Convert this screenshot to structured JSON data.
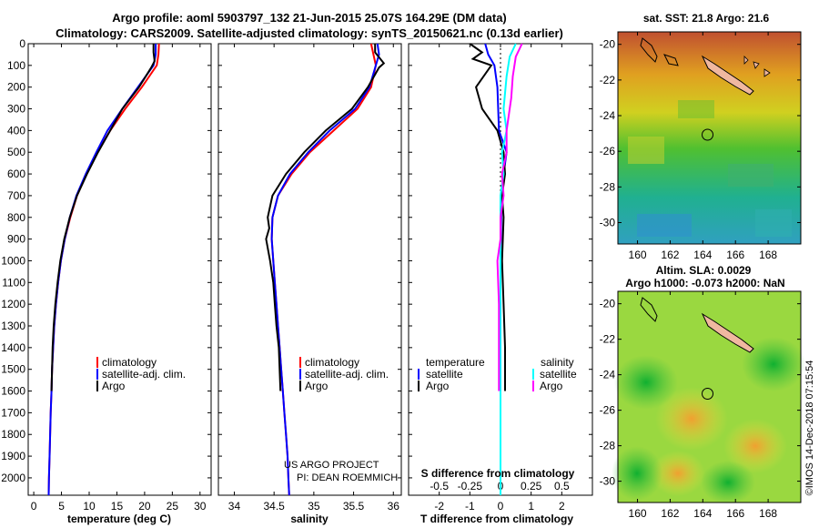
{
  "header": {
    "line1": "Argo profile: aoml 5903797_132 21-Jun-2015 25.07S 164.29E (DM data)",
    "line2": "Climatology: CARS2009. Satellite-adjusted climatology: synTS_20150621.nc (0.13d earlier)"
  },
  "maps": {
    "sst_title": "sat. SST: 21.8 Argo: 21.6",
    "sla_title1": "Altim. SLA: 0.0029",
    "sla_title2": "Argo h1000: -0.073 h2000: NaN",
    "lat_ticks": [
      -20,
      -22,
      -24,
      -26,
      -28,
      -30
    ],
    "lon_ticks": [
      160,
      162,
      164,
      166,
      168
    ],
    "lon_range": [
      158.8,
      170
    ],
    "lat_range": [
      -19.3,
      -31.2
    ],
    "argo_position": {
      "lon": 164.29,
      "lat": -25.07
    }
  },
  "credits": {
    "project": "US ARGO PROJECT",
    "pi": "PI: DEAN ROEMMICH",
    "stamp": "©IMOS 14-Dec-2018 07:15:54"
  },
  "colors": {
    "climatology": "#ff0000",
    "satellite": "#0000ff",
    "argo": "#000000",
    "sal_satellite": "#00ffff",
    "sal_argo": "#ff00ff"
  },
  "chart_data": [
    {
      "type": "line",
      "xlabel": "temperature (deg C)",
      "ylabel": "",
      "xlim": [
        -1,
        32
      ],
      "ylim": [
        2080,
        0
      ],
      "xticks": [
        0,
        5,
        10,
        15,
        20,
        25,
        30
      ],
      "yticks": [
        0,
        100,
        200,
        300,
        400,
        500,
        600,
        700,
        800,
        900,
        1000,
        1100,
        1200,
        1300,
        1400,
        1500,
        1600,
        1700,
        1800,
        1900,
        2000
      ],
      "legend": [
        "climatology",
        "satellite-adj. clim.",
        "Argo"
      ],
      "series": [
        {
          "name": "climatology",
          "color": "#ff0000",
          "points": [
            [
              22.6,
              0
            ],
            [
              22.5,
              50
            ],
            [
              22.2,
              100
            ],
            [
              19.5,
              200
            ],
            [
              16.5,
              300
            ],
            [
              13.8,
              400
            ],
            [
              11.5,
              500
            ],
            [
              9.5,
              600
            ],
            [
              7.8,
              700
            ],
            [
              6.6,
              800
            ],
            [
              5.6,
              900
            ],
            [
              4.9,
              1000
            ],
            [
              4.4,
              1100
            ],
            [
              4.0,
              1200
            ],
            [
              3.7,
              1300
            ],
            [
              3.5,
              1400
            ],
            [
              3.3,
              1500
            ],
            [
              3.2,
              1600
            ],
            [
              3.05,
              1700
            ],
            [
              2.95,
              1800
            ],
            [
              2.85,
              1900
            ],
            [
              2.75,
              2000
            ],
            [
              2.7,
              2080
            ]
          ]
        },
        {
          "name": "satellite-adj. clim.",
          "color": "#0000ff",
          "points": [
            [
              22.0,
              0
            ],
            [
              22.0,
              50
            ],
            [
              21.6,
              100
            ],
            [
              18.8,
              200
            ],
            [
              16.0,
              300
            ],
            [
              13.3,
              400
            ],
            [
              11.3,
              500
            ],
            [
              9.4,
              600
            ],
            [
              7.7,
              700
            ],
            [
              6.5,
              800
            ],
            [
              5.6,
              900
            ],
            [
              4.9,
              1000
            ],
            [
              4.4,
              1100
            ],
            [
              4.0,
              1200
            ],
            [
              3.7,
              1300
            ],
            [
              3.5,
              1400
            ],
            [
              3.3,
              1500
            ],
            [
              3.2,
              1600
            ],
            [
              3.05,
              1700
            ],
            [
              2.95,
              1800
            ],
            [
              2.85,
              1900
            ],
            [
              2.75,
              2000
            ],
            [
              2.7,
              2080
            ]
          ]
        },
        {
          "name": "Argo",
          "color": "#000000",
          "points": [
            [
              21.6,
              0
            ],
            [
              21.6,
              40
            ],
            [
              21.8,
              80
            ],
            [
              21.2,
              110
            ],
            [
              19.0,
              200
            ],
            [
              16.0,
              300
            ],
            [
              13.8,
              400
            ],
            [
              11.6,
              500
            ],
            [
              9.6,
              600
            ],
            [
              7.8,
              700
            ],
            [
              6.5,
              800
            ],
            [
              5.5,
              900
            ],
            [
              4.8,
              1000
            ],
            [
              4.3,
              1100
            ],
            [
              3.9,
              1200
            ],
            [
              3.6,
              1300
            ],
            [
              3.4,
              1400
            ],
            [
              3.3,
              1500
            ],
            [
              3.2,
              1600
            ]
          ]
        }
      ]
    },
    {
      "type": "line",
      "xlabel": "salinity",
      "ylabel": "",
      "xlim": [
        33.8,
        36.1
      ],
      "ylim": [
        2080,
        0
      ],
      "xticks": [
        34,
        34.5,
        35,
        35.5,
        36
      ],
      "legend": [
        "climatology",
        "satellite-adj. clim.",
        "Argo"
      ],
      "series": [
        {
          "name": "climatology",
          "color": "#ff0000",
          "points": [
            [
              35.72,
              0
            ],
            [
              35.75,
              50
            ],
            [
              35.78,
              100
            ],
            [
              35.72,
              200
            ],
            [
              35.55,
              300
            ],
            [
              35.25,
              400
            ],
            [
              34.95,
              500
            ],
            [
              34.72,
              600
            ],
            [
              34.55,
              700
            ],
            [
              34.48,
              800
            ],
            [
              34.47,
              900
            ],
            [
              34.49,
              1000
            ],
            [
              34.51,
              1100
            ],
            [
              34.53,
              1200
            ],
            [
              34.55,
              1300
            ],
            [
              34.57,
              1400
            ],
            [
              34.59,
              1500
            ],
            [
              34.61,
              1600
            ],
            [
              34.63,
              1700
            ],
            [
              34.65,
              1800
            ],
            [
              34.67,
              1900
            ],
            [
              34.68,
              2000
            ],
            [
              34.69,
              2080
            ]
          ]
        },
        {
          "name": "satellite-adj. clim.",
          "color": "#0000ff",
          "points": [
            [
              35.8,
              0
            ],
            [
              35.82,
              50
            ],
            [
              35.78,
              100
            ],
            [
              35.7,
              200
            ],
            [
              35.52,
              300
            ],
            [
              35.2,
              400
            ],
            [
              34.93,
              500
            ],
            [
              34.7,
              600
            ],
            [
              34.55,
              700
            ],
            [
              34.48,
              800
            ],
            [
              34.47,
              900
            ],
            [
              34.49,
              1000
            ],
            [
              34.51,
              1100
            ],
            [
              34.53,
              1200
            ],
            [
              34.55,
              1300
            ],
            [
              34.57,
              1400
            ],
            [
              34.59,
              1500
            ],
            [
              34.61,
              1600
            ],
            [
              34.63,
              1700
            ],
            [
              34.65,
              1800
            ],
            [
              34.67,
              1900
            ],
            [
              34.68,
              2000
            ],
            [
              34.69,
              2080
            ]
          ]
        },
        {
          "name": "Argo",
          "color": "#000000",
          "points": [
            [
              35.77,
              0
            ],
            [
              35.77,
              40
            ],
            [
              35.88,
              90
            ],
            [
              35.82,
              110
            ],
            [
              35.68,
              200
            ],
            [
              35.48,
              300
            ],
            [
              35.15,
              400
            ],
            [
              34.88,
              500
            ],
            [
              34.65,
              600
            ],
            [
              34.48,
              700
            ],
            [
              34.42,
              800
            ],
            [
              34.44,
              850
            ],
            [
              34.4,
              900
            ],
            [
              34.45,
              1000
            ],
            [
              34.49,
              1100
            ],
            [
              34.51,
              1200
            ],
            [
              34.53,
              1300
            ],
            [
              34.56,
              1400
            ],
            [
              34.57,
              1500
            ],
            [
              34.58,
              1600
            ]
          ]
        }
      ]
    },
    {
      "type": "line",
      "xlabel": "T difference from climatology",
      "xlabel_top": "S difference from climatology",
      "xlim": [
        -3,
        3
      ],
      "ylim": [
        2080,
        0
      ],
      "xticks": [
        -2,
        -1,
        0,
        1,
        2
      ],
      "xticks_top_labels": [
        "-0.5",
        "-0.25",
        "0",
        "0.25",
        "0.5"
      ],
      "legend_temperature": {
        "title": "temperature",
        "items": [
          "satellite",
          "Argo"
        ]
      },
      "legend_salinity": {
        "title": "salinity",
        "items": [
          "satellite",
          "Argo"
        ]
      },
      "series": [
        {
          "name": "satellite",
          "color": "#0000ff",
          "points": [
            [
              -0.5,
              0
            ],
            [
              -0.4,
              50
            ],
            [
              -0.2,
              100
            ],
            [
              -0.1,
              200
            ],
            [
              -0.05,
              400
            ],
            [
              0.2,
              500
            ],
            [
              0.1,
              600
            ],
            [
              0.05,
              700
            ],
            [
              0.02,
              800
            ],
            [
              0,
              1000
            ],
            [
              0,
              1500
            ],
            [
              0,
              2000
            ],
            [
              0,
              2080
            ]
          ]
        },
        {
          "name": "Argo",
          "color": "#000000",
          "points": [
            [
              -1.0,
              0
            ],
            [
              -0.6,
              40
            ],
            [
              -0.9,
              70
            ],
            [
              -0.3,
              100
            ],
            [
              -0.8,
              200
            ],
            [
              -0.6,
              300
            ],
            [
              -0.1,
              400
            ],
            [
              0.1,
              500
            ],
            [
              0.15,
              600
            ],
            [
              0.05,
              700
            ],
            [
              0.1,
              800
            ],
            [
              0.05,
              1000
            ],
            [
              0.1,
              1200
            ],
            [
              0.15,
              1400
            ],
            [
              0.15,
              1600
            ]
          ]
        },
        {
          "name": "satellite",
          "color": "#00ffff",
          "points": [
            [
              0.5,
              0
            ],
            [
              0.3,
              60
            ],
            [
              0.2,
              150
            ],
            [
              0.1,
              300
            ],
            [
              0.2,
              400
            ],
            [
              0.05,
              500
            ],
            [
              0.1,
              600
            ],
            [
              0,
              700
            ],
            [
              0,
              1000
            ],
            [
              0,
              1500
            ],
            [
              0,
              2000
            ],
            [
              0,
              2080
            ]
          ]
        },
        {
          "name": "Argo",
          "color": "#ff00ff",
          "points": [
            [
              0.7,
              0
            ],
            [
              0.5,
              60
            ],
            [
              0.4,
              150
            ],
            [
              0.35,
              250
            ],
            [
              0.2,
              400
            ],
            [
              0.2,
              500
            ],
            [
              0.05,
              600
            ],
            [
              0.1,
              700
            ],
            [
              0,
              800
            ],
            [
              0,
              900
            ],
            [
              -0.1,
              1000
            ],
            [
              -0.05,
              1200
            ],
            [
              -0.05,
              1400
            ],
            [
              -0.05,
              1600
            ]
          ]
        }
      ]
    }
  ]
}
